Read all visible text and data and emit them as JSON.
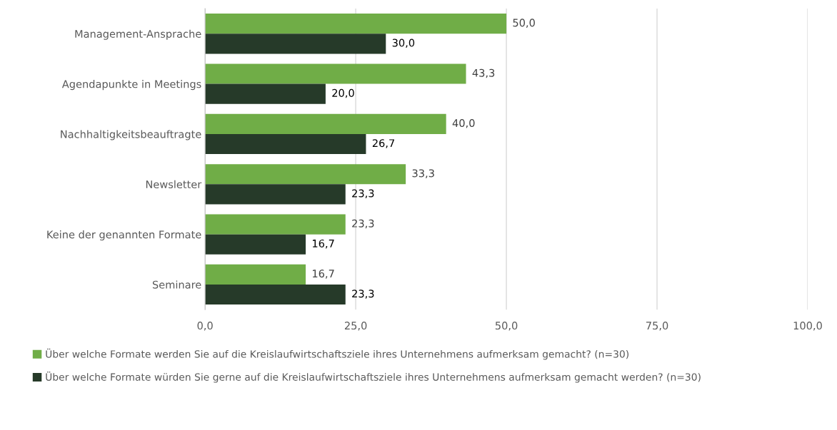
{
  "chart_data": {
    "type": "bar",
    "orientation": "horizontal",
    "categories": [
      "Management-Ansprache",
      "Agendapunkte in Meetings",
      "Nachhaltigkeitsbeauftragte",
      "Newsletter",
      "Keine der genannten Formate",
      "Seminare"
    ],
    "series": [
      {
        "name": "Über welche Formate werden Sie auf die Kreislaufwirtschaftsziele ihres Unternehmens aufmerksam gemacht? (n=30)",
        "color": "#70ad47",
        "values": [
          50.0,
          43.3,
          40.0,
          33.3,
          23.3,
          16.7
        ],
        "value_labels": [
          "50,0",
          "43,3",
          "40,0",
          "33,3",
          "23,3",
          "16,7"
        ]
      },
      {
        "name": "Über welche Formate würden Sie gerne auf die Kreislaufwirtschaftsziele ihres Unternehmens aufmerksam gemacht werden? (n=30)",
        "color": "#263a29",
        "values": [
          30.0,
          20.0,
          26.7,
          23.3,
          16.7,
          23.3
        ],
        "value_labels": [
          "30,0",
          "20,0",
          "26,7",
          "23,3",
          "16,7",
          "23,3"
        ]
      }
    ],
    "xlim": [
      0,
      100
    ],
    "xticks": [
      {
        "value": 0,
        "label": "0,0"
      },
      {
        "value": 25,
        "label": "25,0"
      },
      {
        "value": 50,
        "label": "50,0"
      },
      {
        "value": 75,
        "label": "75,0"
      },
      {
        "value": 100,
        "label": "100,0"
      }
    ],
    "grid": "x",
    "legend": "bottom"
  }
}
